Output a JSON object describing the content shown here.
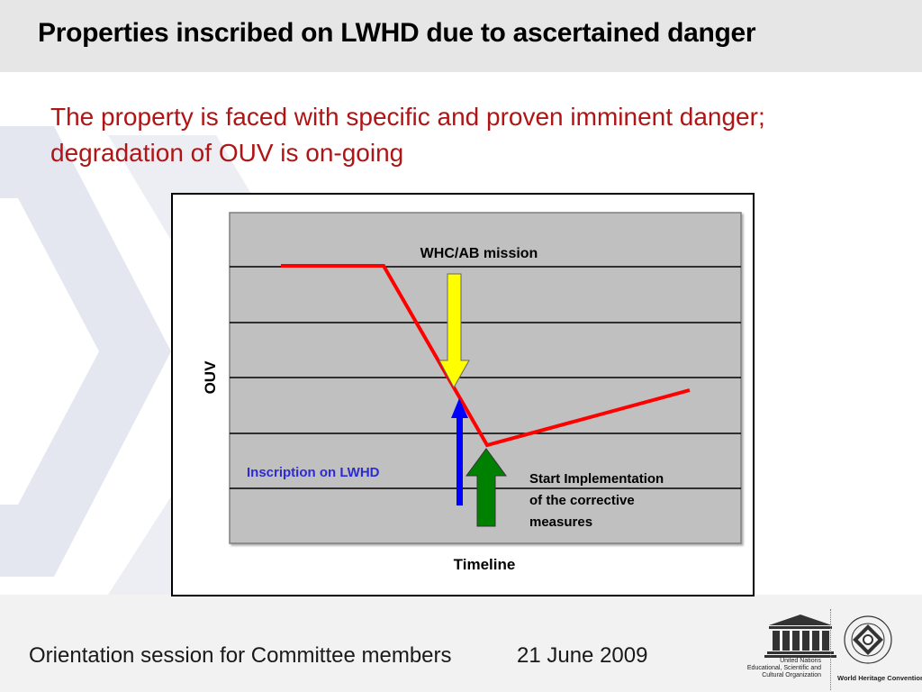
{
  "slide": {
    "title": "Properties inscribed on LWHD due to ascertained danger",
    "subtitle": "The property is faced with specific and proven imminent danger; degradation of OUV is on-going"
  },
  "diagram": {
    "y_axis_label": "OUV",
    "x_axis_label": "Timeline",
    "annotations": {
      "mission": "WHC/AB mission",
      "inscription": "Inscription on LWHD",
      "corrective_line1": "Start Implementation",
      "corrective_line2": "of the corrective",
      "corrective_line3": "measures"
    },
    "colors": {
      "plot_bg": "#c0c0c0",
      "ouv_line": "#ff0000",
      "mission_arrow": "#ffff00",
      "inscription_arrow": "#0000ff",
      "corrective_arrow": "#008000",
      "inscription_text": "#2b2bd6"
    }
  },
  "footer": {
    "session": "Orientation session for Committee members",
    "date": "21 June 2009",
    "unesco_caption_1": "United Nations",
    "unesco_caption_2": "Educational, Scientific and",
    "unesco_caption_3": "Cultural Organization",
    "whc_caption": "World Heritage Convention",
    "unesco_letters": "UNESCO"
  }
}
